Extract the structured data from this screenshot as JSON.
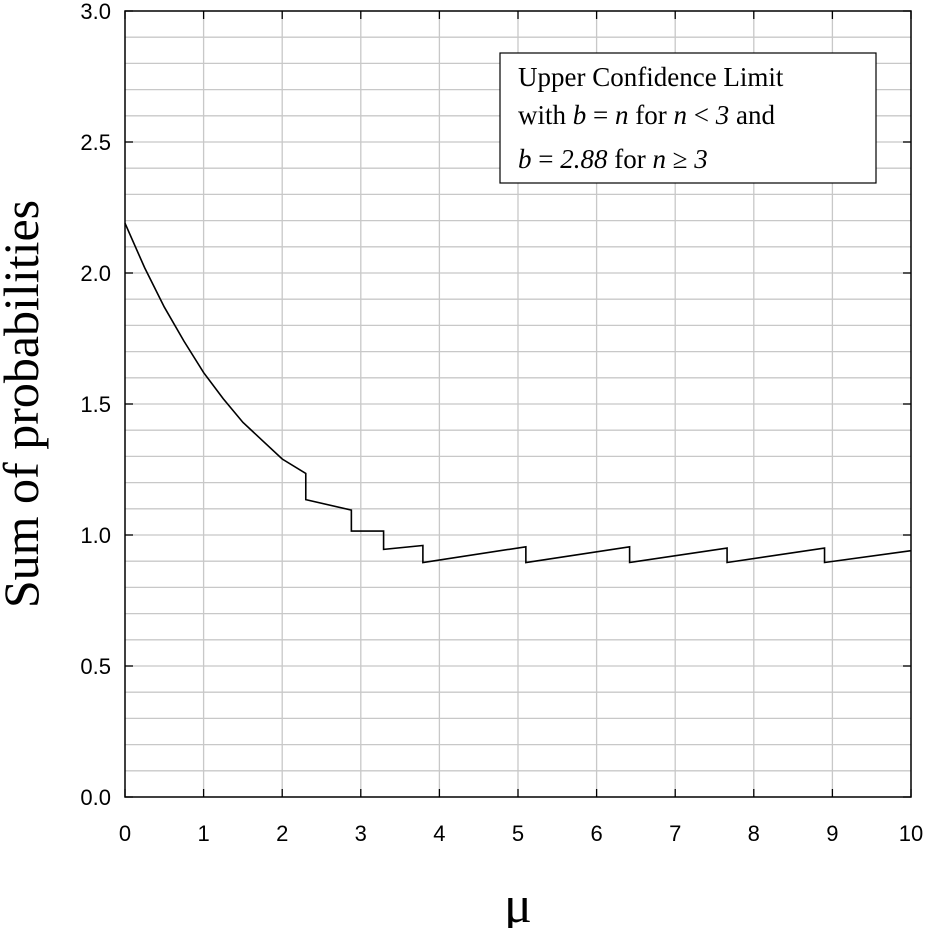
{
  "chart_data": {
    "type": "line",
    "title": "",
    "xlabel": "μ",
    "ylabel": "Sum of probabilities",
    "xlim": [
      0,
      10
    ],
    "ylim": [
      0,
      3
    ],
    "x_ticks": [
      "0",
      "1",
      "2",
      "3",
      "4",
      "5",
      "6",
      "7",
      "8",
      "9",
      "10"
    ],
    "y_ticks": [
      "0.0",
      "0.5",
      "1.0",
      "1.5",
      "2.0",
      "2.5",
      "3.0"
    ],
    "grid": true,
    "legend_placement": "top-right",
    "legend": {
      "line1": "Upper Confidence Limit",
      "line2_a": "with ",
      "line2_b": "b",
      "line2_c": " = ",
      "line2_d": "n",
      "line2_e": " for ",
      "line2_f": "n",
      "line2_g": " < ",
      "line2_h": "3",
      "line2_i": " and",
      "line3_a": "b",
      "line3_b": " = ",
      "line3_c": "2.88",
      "line3_d": " for ",
      "line3_e": "n",
      "line3_f": " ≥ ",
      "line3_g": "3"
    },
    "series": [
      {
        "points": [
          [
            0.0,
            2.19
          ],
          [
            0.25,
            2.02
          ],
          [
            0.5,
            1.87
          ],
          [
            0.75,
            1.74
          ],
          [
            1.0,
            1.62
          ],
          [
            1.25,
            1.52
          ],
          [
            1.5,
            1.43
          ],
          [
            1.75,
            1.36
          ],
          [
            2.0,
            1.29
          ],
          [
            2.3,
            1.235
          ],
          [
            2.3,
            1.135
          ],
          [
            2.88,
            1.095
          ],
          [
            2.88,
            1.015
          ],
          [
            3.29,
            1.015
          ],
          [
            3.29,
            0.945
          ],
          [
            3.79,
            0.96
          ],
          [
            3.79,
            0.895
          ],
          [
            5.1,
            0.955
          ],
          [
            5.1,
            0.895
          ],
          [
            6.42,
            0.955
          ],
          [
            6.42,
            0.895
          ],
          [
            7.66,
            0.95
          ],
          [
            7.66,
            0.895
          ],
          [
            8.9,
            0.95
          ],
          [
            8.9,
            0.895
          ],
          [
            10.0,
            0.94
          ]
        ]
      }
    ]
  }
}
